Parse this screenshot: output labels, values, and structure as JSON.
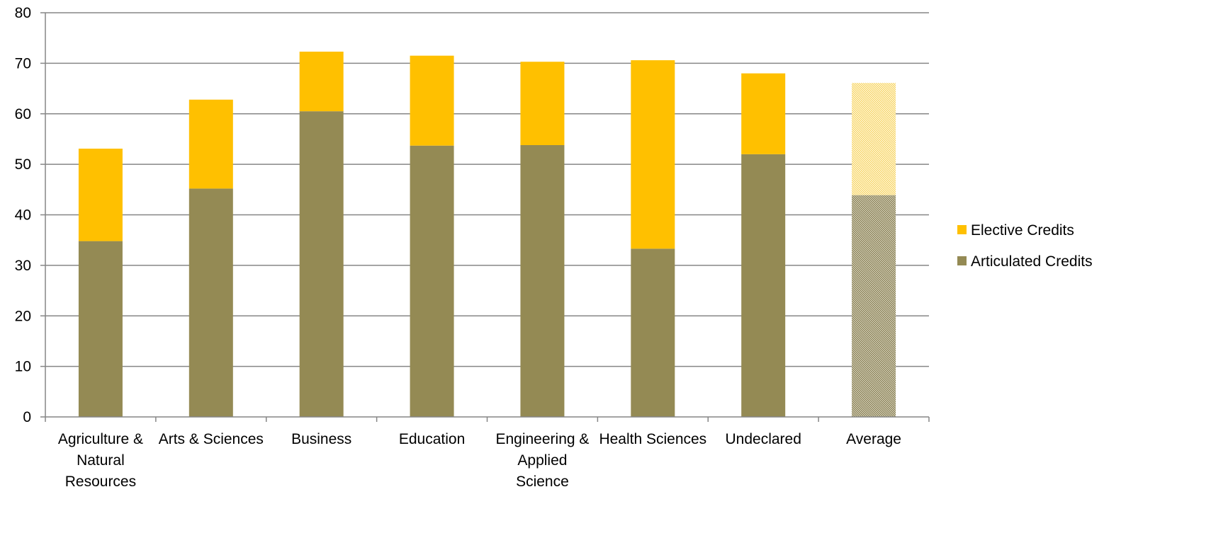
{
  "chart_data": {
    "type": "bar",
    "stacked": true,
    "categories": [
      [
        "Agriculture &",
        "Natural",
        "Resources"
      ],
      [
        "Arts & Sciences"
      ],
      [
        "Business"
      ],
      [
        "Education"
      ],
      [
        "Engineering &",
        "Applied",
        "Science"
      ],
      [
        "Health Sciences"
      ],
      [
        "Undeclared"
      ],
      [
        "Average"
      ]
    ],
    "series": [
      {
        "name": "Articulated Credits",
        "color": "#948A54",
        "values": [
          34.8,
          45.2,
          60.5,
          53.7,
          53.8,
          33.3,
          52.0,
          43.9
        ]
      },
      {
        "name": "Elective Credits",
        "color": "#FFC000",
        "values": [
          18.3,
          17.6,
          11.8,
          17.8,
          16.5,
          37.3,
          16.0,
          22.2
        ]
      }
    ],
    "patterned_categories": [
      "Average"
    ],
    "ylim": [
      0,
      80
    ],
    "yticks": [
      0,
      10,
      20,
      30,
      40,
      50,
      60,
      70,
      80
    ],
    "grid": true,
    "legend_position": "right",
    "legend_order": [
      "Elective Credits",
      "Articulated Credits"
    ],
    "title": "",
    "xlabel": "",
    "ylabel": ""
  }
}
